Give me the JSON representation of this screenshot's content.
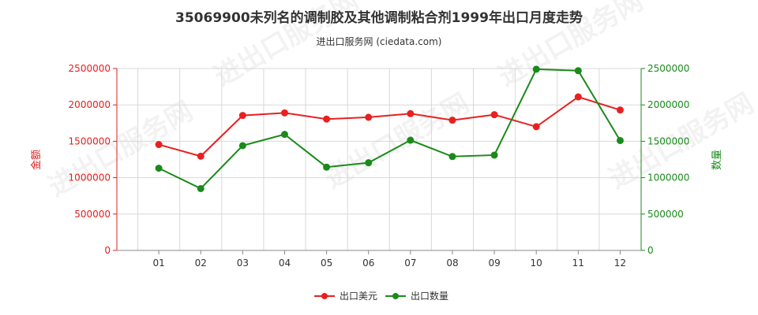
{
  "title": "35069900未列名的调制胶及其他调制粘合剂1999年出口月度走势",
  "subtitle": "进出口服务网 (ciedata.com)",
  "watermark": "进出口服务网",
  "chart_data": {
    "type": "line",
    "categories": [
      "01",
      "02",
      "03",
      "04",
      "05",
      "06",
      "07",
      "08",
      "09",
      "10",
      "11",
      "12"
    ],
    "series": [
      {
        "name": "出口美元",
        "color": "#e82020",
        "axis": "left",
        "values": [
          1455000,
          1295000,
          1855000,
          1890000,
          1805000,
          1830000,
          1880000,
          1790000,
          1865000,
          1700000,
          2110000,
          1930000
        ]
      },
      {
        "name": "出口数量",
        "color": "#1a8a1a",
        "axis": "right",
        "values": [
          1130000,
          850000,
          1440000,
          1595000,
          1145000,
          1205000,
          1515000,
          1290000,
          1310000,
          2490000,
          2470000,
          1510000
        ]
      }
    ],
    "ylabel_left": "金额",
    "ylabel_right": "数量",
    "ylim_left": [
      0,
      2500000
    ],
    "ylim_right": [
      0,
      2500000
    ],
    "yticks_left": [
      "0",
      "500000",
      "1000000",
      "1500000",
      "2000000",
      "2500000"
    ],
    "yticks_right": [
      "0",
      "500000",
      "1000000",
      "1500000",
      "2000000",
      "2500000"
    ],
    "grid": true,
    "legend": "bottom-center"
  }
}
